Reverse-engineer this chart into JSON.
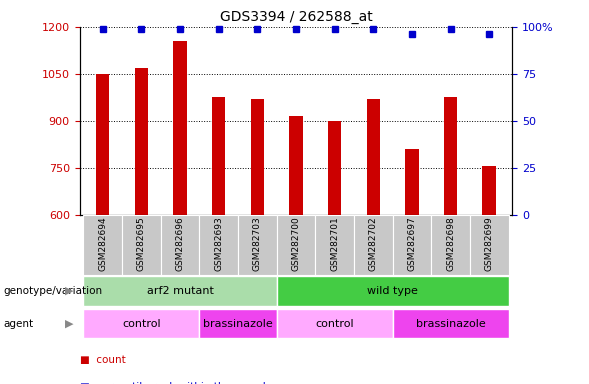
{
  "title": "GDS3394 / 262588_at",
  "samples": [
    "GSM282694",
    "GSM282695",
    "GSM282696",
    "GSM282693",
    "GSM282703",
    "GSM282700",
    "GSM282701",
    "GSM282702",
    "GSM282697",
    "GSM282698",
    "GSM282699"
  ],
  "counts": [
    1050,
    1070,
    1155,
    975,
    970,
    915,
    900,
    970,
    810,
    975,
    755
  ],
  "percentiles": [
    99,
    99,
    99,
    99,
    99,
    99,
    99,
    99,
    96,
    99,
    96
  ],
  "ylim_left": [
    600,
    1200
  ],
  "ylim_right": [
    0,
    100
  ],
  "yticks_left": [
    600,
    750,
    900,
    1050,
    1200
  ],
  "yticks_right": [
    0,
    25,
    50,
    75,
    100
  ],
  "bar_color": "#cc0000",
  "dot_color": "#0000cc",
  "tick_label_bg": "#c8c8c8",
  "genotype_groups": [
    {
      "label": "arf2 mutant",
      "start": 0,
      "end": 5,
      "color": "#aaddaa"
    },
    {
      "label": "wild type",
      "start": 5,
      "end": 11,
      "color": "#44cc44"
    }
  ],
  "agent_groups": [
    {
      "label": "control",
      "start": 0,
      "end": 3,
      "color": "#ffaaff"
    },
    {
      "label": "brassinazole",
      "start": 3,
      "end": 5,
      "color": "#ee44ee"
    },
    {
      "label": "control",
      "start": 5,
      "end": 8,
      "color": "#ffaaff"
    },
    {
      "label": "brassinazole",
      "start": 8,
      "end": 11,
      "color": "#ee44ee"
    }
  ],
  "left_ylabel_color": "#cc0000",
  "right_ylabel_color": "#0000cc",
  "ytick_labels_right": [
    "0",
    "25",
    "50",
    "75",
    "100%"
  ]
}
